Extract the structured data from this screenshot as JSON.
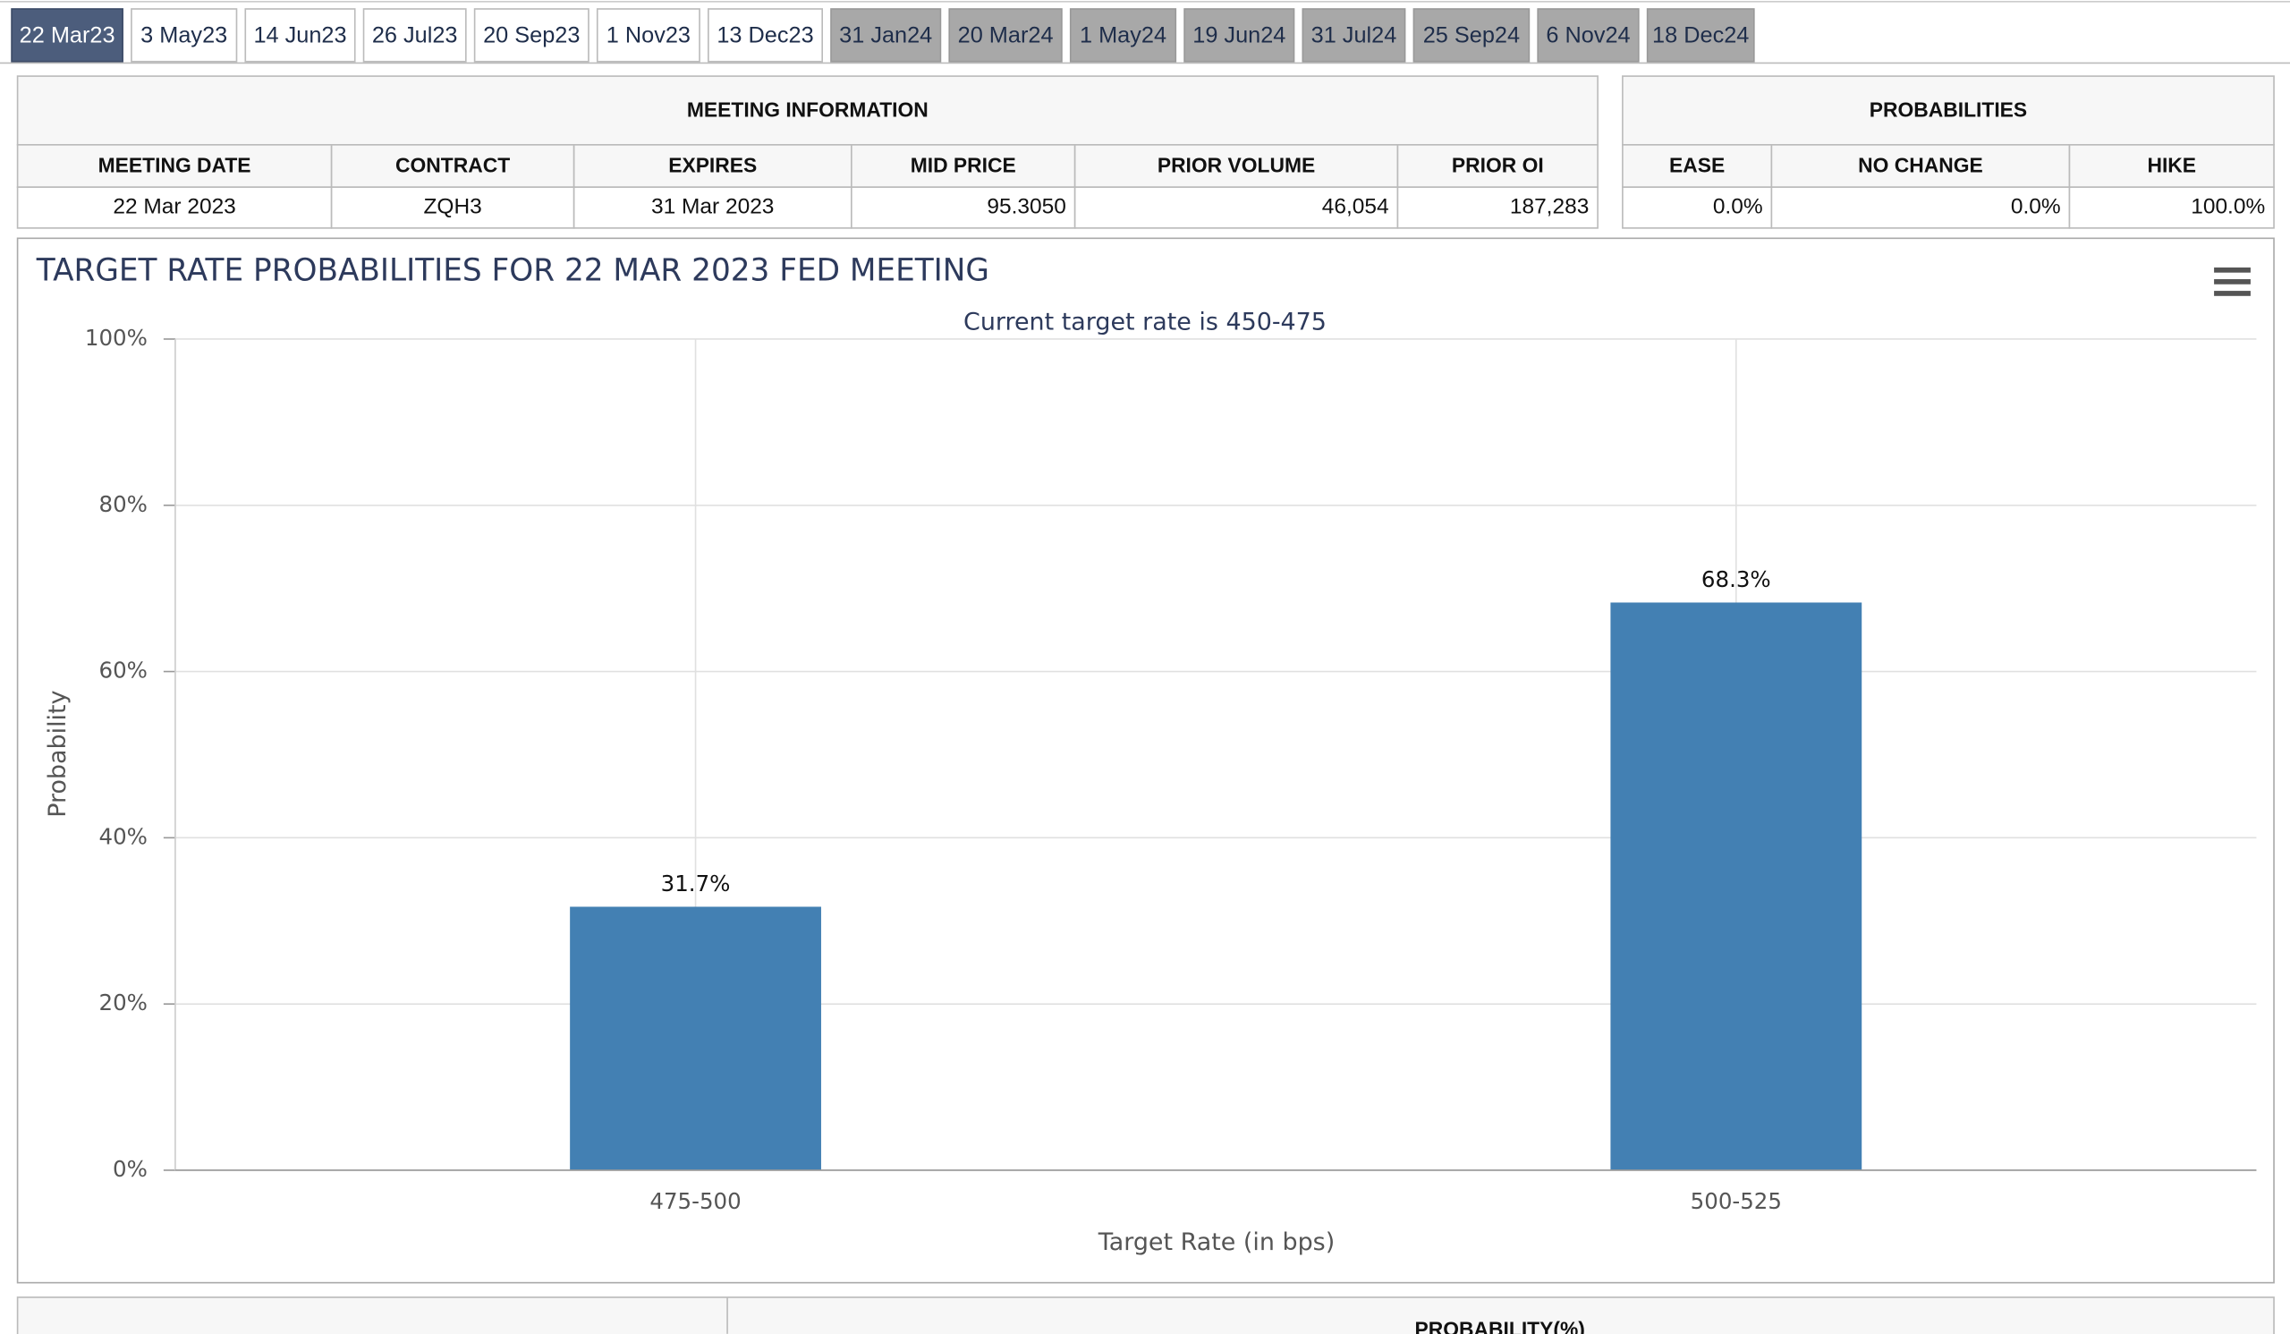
{
  "tabs": [
    {
      "label": "22 Mar23",
      "state": "active"
    },
    {
      "label": "3 May23",
      "state": "normal"
    },
    {
      "label": "14 Jun23",
      "state": "normal"
    },
    {
      "label": "26 Jul23",
      "state": "normal"
    },
    {
      "label": "20 Sep23",
      "state": "normal"
    },
    {
      "label": "1 Nov23",
      "state": "normal"
    },
    {
      "label": "13 Dec23",
      "state": "normal"
    },
    {
      "label": "31 Jan24",
      "state": "muted"
    },
    {
      "label": "20 Mar24",
      "state": "muted"
    },
    {
      "label": "1 May24",
      "state": "muted"
    },
    {
      "label": "19 Jun24",
      "state": "muted"
    },
    {
      "label": "31 Jul24",
      "state": "muted"
    },
    {
      "label": "25 Sep24",
      "state": "muted"
    },
    {
      "label": "6 Nov24",
      "state": "muted"
    },
    {
      "label": "18 Dec24",
      "state": "muted"
    }
  ],
  "meeting_info": {
    "title": "MEETING INFORMATION",
    "columns": [
      "MEETING DATE",
      "CONTRACT",
      "EXPIRES",
      "MID PRICE",
      "PRIOR VOLUME",
      "PRIOR OI"
    ],
    "rows": [
      [
        "22 Mar 2023",
        "ZQH3",
        "31 Mar 2023",
        "95.3050",
        "46,054",
        "187,283"
      ]
    ]
  },
  "probabilities": {
    "title": "PROBABILITIES",
    "columns": [
      "EASE",
      "NO CHANGE",
      "HIKE"
    ],
    "rows": [
      [
        "0.0%",
        "0.0%",
        "100.0%"
      ]
    ]
  },
  "chart_data": {
    "type": "bar",
    "title": "TARGET RATE PROBABILITIES FOR 22 MAR 2023 FED MEETING",
    "subtitle": "Current target rate is 450-475",
    "x_label": "Target Rate (in bps)",
    "y_label": "Probability",
    "categories": [
      "475-500",
      "500-525"
    ],
    "values": [
      31.7,
      68.3
    ],
    "value_labels": [
      "31.7%",
      "68.3%"
    ],
    "color": "#4380b3",
    "ylim": [
      0,
      100
    ],
    "yticks": [
      {
        "value": 0,
        "label": "0%"
      },
      {
        "value": 20,
        "label": "20%"
      },
      {
        "value": 40,
        "label": "40%"
      },
      {
        "value": 60,
        "label": "60%"
      },
      {
        "value": 80,
        "label": "80%"
      },
      {
        "value": 100,
        "label": "100%"
      }
    ],
    "grid": true
  },
  "bottom_table": {
    "header": "PROBABILITY(%)"
  }
}
